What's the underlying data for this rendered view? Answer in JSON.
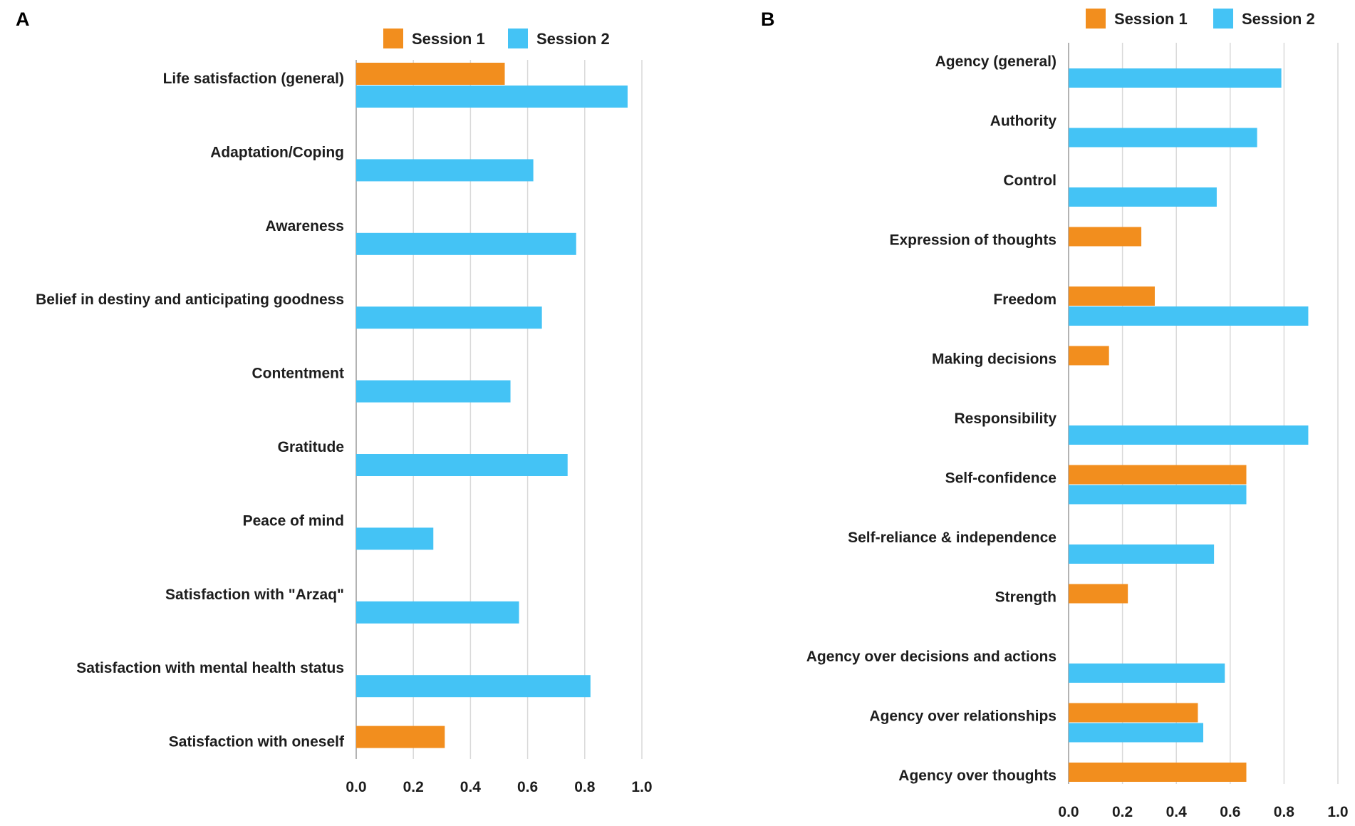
{
  "colors": {
    "session1": "#f28e1e",
    "session2": "#44c3f5"
  },
  "chart_data": [
    {
      "panel": "A",
      "type": "bar",
      "orientation": "horizontal",
      "legend_position": "top",
      "xlim": [
        0,
        1.0
      ],
      "ticks": [
        "0.0",
        "0.2",
        "0.4",
        "0.6",
        "0.8",
        "1.0"
      ],
      "categories": [
        "Life satisfaction (general)",
        "Adaptation/Coping",
        "Awareness",
        "Belief in destiny and anticipating goodness",
        "Contentment",
        "Gratitude",
        "Peace of mind",
        "Satisfaction with \"Arzaq\"",
        "Satisfaction with mental health status",
        "Satisfaction with oneself"
      ],
      "series": [
        {
          "name": "Session 1",
          "values": [
            0.52,
            null,
            null,
            null,
            null,
            null,
            null,
            null,
            null,
            0.31
          ]
        },
        {
          "name": "Session 2",
          "values": [
            0.95,
            0.62,
            0.77,
            0.65,
            0.54,
            0.74,
            0.27,
            0.57,
            0.82,
            null
          ]
        }
      ]
    },
    {
      "panel": "B",
      "type": "bar",
      "orientation": "horizontal",
      "legend_position": "top",
      "xlim": [
        0,
        1.0
      ],
      "ticks": [
        "0.0",
        "0.2",
        "0.4",
        "0.6",
        "0.8",
        "1.0"
      ],
      "categories": [
        "Agency (general)",
        "Authority",
        "Control",
        "Expression of thoughts",
        "Freedom",
        "Making decisions",
        "Responsibility",
        "Self-confidence",
        "Self-reliance & independence",
        "Strength",
        "Agency over decisions and actions",
        "Agency over relationships",
        "Agency over thoughts"
      ],
      "series": [
        {
          "name": "Session 1",
          "values": [
            null,
            null,
            null,
            0.27,
            0.32,
            0.15,
            null,
            0.66,
            null,
            0.22,
            null,
            0.48,
            0.66
          ]
        },
        {
          "name": "Session 2",
          "values": [
            0.79,
            0.7,
            0.55,
            null,
            0.89,
            null,
            0.89,
            0.66,
            0.54,
            null,
            0.58,
            0.5,
            null
          ]
        }
      ]
    }
  ]
}
